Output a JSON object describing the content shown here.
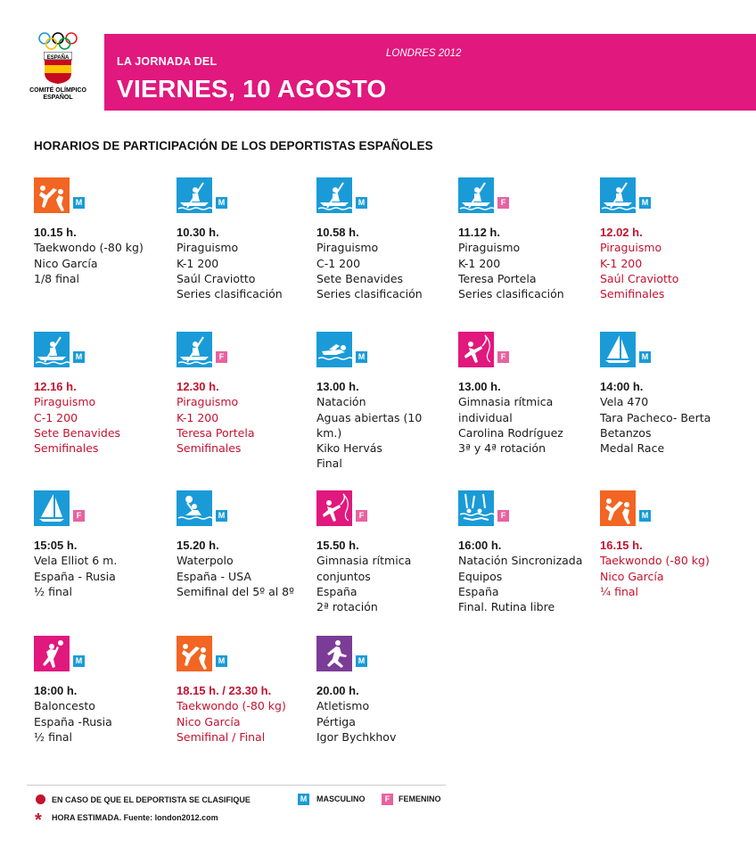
{
  "logo": {
    "top_text": "ESPAÑA",
    "line1": "COMITÉ OLÍMPICO",
    "line2": "ESPAÑOL"
  },
  "banner": {
    "small": "LA JORNADA DEL",
    "big": "VIERNES, 10 AGOSTO",
    "city": "LONDRES 2012"
  },
  "heading": "HORARIOS DE PARTICIPACIÓN DE LOS DEPORTISTAS ESPAÑOLES",
  "colors": {
    "taekwondo": "#f26522",
    "canoe": "#1a9bd7",
    "swim": "#1a9bd7",
    "gym": "#e1187d",
    "sail": "#1a9bd7",
    "athletics": "#7b3c97",
    "male_badge": "#1a9bd7",
    "female_badge": "#e9629f",
    "highlight_red": "#c4122f"
  },
  "events": [
    {
      "icon": "taekwondo-icon",
      "gender": "M",
      "time": "10.15 h.",
      "lines": [
        "Taekwondo (-80 kg)",
        "Nico García",
        "1/8 final"
      ]
    },
    {
      "icon": "canoe-icon",
      "gender": "M",
      "time": "10.30 h.",
      "lines": [
        "Piraguismo",
        "K-1 200",
        "Saúl Craviotto",
        "Series clasificación"
      ]
    },
    {
      "icon": "canoe-icon",
      "gender": "M",
      "time": "10.58 h.",
      "lines": [
        "Piraguismo",
        "C-1 200",
        "Sete Benavides",
        "Series clasificación"
      ]
    },
    {
      "icon": "canoe-icon",
      "gender": "F",
      "time": "11.12 h.",
      "lines": [
        "Piraguismo",
        "K-1 200",
        "Teresa Portela",
        "Series clasificación"
      ]
    },
    {
      "icon": "canoe-icon",
      "gender": "M",
      "time": "12.02 h.",
      "lines": [
        "Piraguismo",
        "K-1 200",
        "Saúl Craviotto",
        "Semifinales"
      ],
      "highlight": true
    },
    {
      "icon": "canoe-icon",
      "gender": "M",
      "time": "12.16 h.",
      "lines": [
        "Piraguismo",
        "C-1 200",
        "Sete Benavides",
        "Semifinales"
      ],
      "highlight": true
    },
    {
      "icon": "canoe-icon",
      "gender": "F",
      "time": "12.30 h.",
      "lines": [
        "Piraguismo",
        "K-1 200",
        "Teresa Portela",
        "Semifinales"
      ],
      "highlight": true
    },
    {
      "icon": "swimming-icon",
      "gender": "M",
      "time": "13.00 h.",
      "lines": [
        "Natación",
        "Aguas abiertas (10",
        "km.)",
        "Kiko Hervás",
        "Final"
      ]
    },
    {
      "icon": "rhythmic-gymnastics-icon",
      "gender": "F",
      "time": "13.00 h.",
      "lines": [
        "Gimnasia rítmica",
        "individual",
        "Carolina Rodríguez",
        "3ª y 4ª rotación"
      ]
    },
    {
      "icon": "sailing-icon",
      "gender": "M",
      "time": "14:00 h.",
      "lines": [
        "Vela 470",
        "Tara Pacheco- Berta",
        "Betanzos",
        "Medal Race"
      ]
    },
    {
      "icon": "sailing-icon",
      "gender": "F",
      "time": "15:05 h.",
      "lines": [
        "Vela Elliot 6 m.",
        "España - Rusia",
        "½ final"
      ]
    },
    {
      "icon": "waterpolo-icon",
      "gender": "M",
      "time": "15.20 h.",
      "lines": [
        "Waterpolo",
        "España - USA",
        "Semifinal del 5º al 8º"
      ]
    },
    {
      "icon": "rhythmic-gymnastics-icon",
      "gender": "F",
      "time": "15.50 h.",
      "lines": [
        "Gimnasia rítmica",
        "conjuntos",
        "España",
        "2ª rotación"
      ]
    },
    {
      "icon": "synchronized-swimming-icon",
      "gender": "F",
      "time": "16:00 h.",
      "lines": [
        "Natación Sincronizada",
        "Equipos",
        "España",
        "Final. Rutina libre"
      ]
    },
    {
      "icon": "taekwondo-icon",
      "gender": "M",
      "time": "16.15 h.",
      "lines": [
        "Taekwondo (-80 kg)",
        "Nico García",
        "¼ final"
      ],
      "highlight": true
    },
    {
      "icon": "basketball-icon",
      "gender": "M",
      "time": "18:00 h.",
      "lines": [
        "Baloncesto",
        "España -Rusia",
        "½ final"
      ]
    },
    {
      "icon": "taekwondo-icon",
      "gender": "M",
      "time": "18.15 h. / 23.30 h.",
      "lines": [
        "Taekwondo (-80 kg)",
        "Nico García",
        "Semifinal / Final"
      ],
      "highlight": true
    },
    {
      "icon": "athletics-icon",
      "gender": "M",
      "time": "20.00 h.",
      "lines": [
        "Atletismo",
        "Pértiga",
        "Igor Bychkhov"
      ]
    }
  ],
  "legend": {
    "qualify": "EN CASO DE QUE EL DEPORTISTA SE CLASIFIQUE",
    "male_letter": "M",
    "male": "MASCULINO",
    "female_letter": "F",
    "female": "FEMENINO",
    "estimated": "HORA ESTIMADA. Fuente: london2012.com"
  }
}
